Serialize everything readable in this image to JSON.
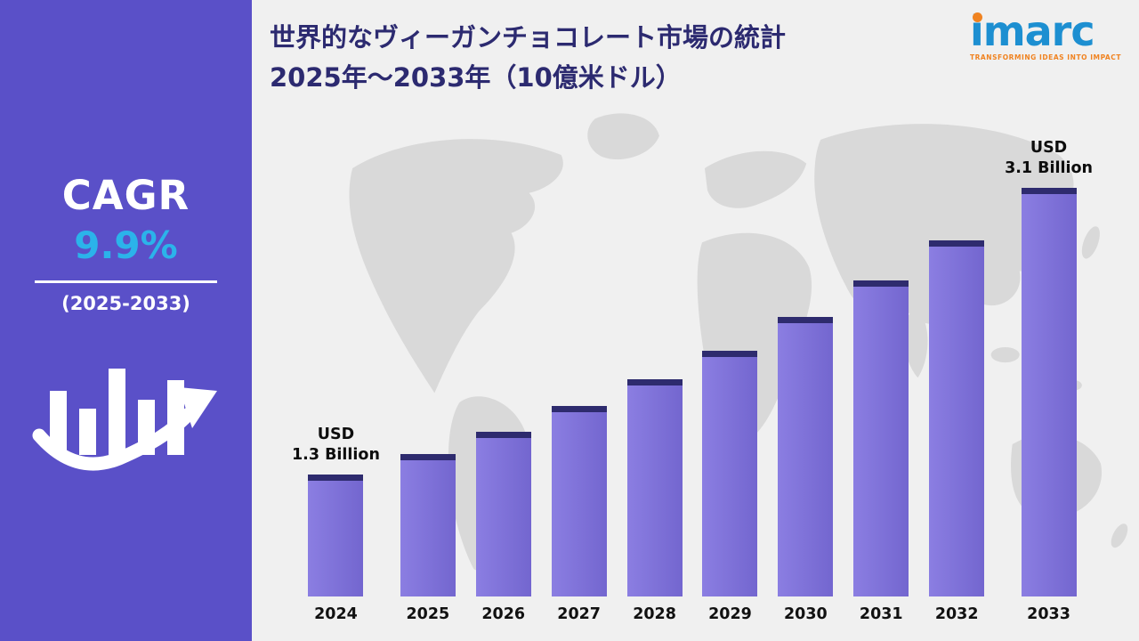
{
  "sidebar": {
    "cagr_label": "CAGR",
    "cagr_value": "9.9%",
    "period": "(2025-2033)"
  },
  "header": {
    "title_line1": "世界的なヴィーガンチョコレート市場の統計",
    "title_line2": "2025年～2033年（10億米ドル）",
    "logo_text": "imarc",
    "logo_tagline": "TRANSFORMING IDEAS INTO IMPACT"
  },
  "chart_data": {
    "type": "bar",
    "title": "世界的なヴィーガンチョコレート市場の統計 2025年～2033年（10億米ドル）",
    "xlabel": "",
    "ylabel": "USD Billion",
    "unit": "USD Billion",
    "categories": [
      "2024",
      "2025",
      "2026",
      "2027",
      "2028",
      "2029",
      "2030",
      "2031",
      "2032",
      "2033"
    ],
    "values": [
      1.3,
      1.43,
      1.57,
      1.73,
      1.9,
      2.08,
      2.29,
      2.52,
      2.77,
      3.1
    ],
    "annotations": {
      "2024": "USD\n1.3 Billion",
      "2033": "USD\n3.1 Billion"
    },
    "cagr": "9.9%",
    "cagr_period": "2025-2033",
    "legend": false,
    "grid": false,
    "ylim": [
      0,
      3.5
    ]
  },
  "colors": {
    "sidebar_bg": "#5a50c8",
    "accent_cyan": "#2bb3ea",
    "main_bg": "#f0f0f0",
    "map_gray": "#d9d9d9",
    "title_color": "#2c2a70",
    "bar_light": "#8b7ee2",
    "bar_dark": "#7366cf",
    "bar_top": "#2e2b6e",
    "logo_blue": "#1d8fd1",
    "logo_orange": "#f08321"
  }
}
